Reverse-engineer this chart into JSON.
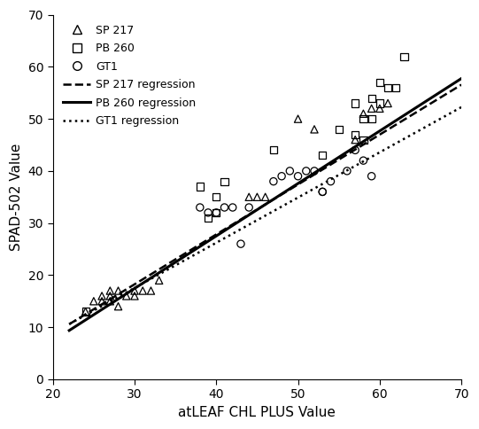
{
  "sp217_x": [
    24,
    25,
    26,
    26,
    27,
    27,
    27,
    28,
    28,
    29,
    30,
    30,
    31,
    32,
    33,
    44,
    45,
    46,
    50,
    52,
    57,
    58,
    59,
    60,
    61
  ],
  "sp217_y": [
    13,
    15,
    16,
    15,
    17,
    16,
    15,
    17,
    14,
    16,
    17,
    16,
    17,
    17,
    19,
    35,
    35,
    35,
    50,
    48,
    46,
    51,
    52,
    52,
    53
  ],
  "pb260_x": [
    24,
    38,
    39,
    40,
    40,
    41,
    47,
    53,
    55,
    57,
    57,
    58,
    58,
    59,
    59,
    60,
    60,
    61,
    62,
    63
  ],
  "pb260_y": [
    13,
    37,
    31,
    35,
    32,
    38,
    44,
    43,
    48,
    47,
    53,
    50,
    46,
    50,
    54,
    53,
    57,
    56,
    56,
    62
  ],
  "gt1_x": [
    38,
    39,
    40,
    41,
    42,
    43,
    44,
    47,
    48,
    49,
    50,
    51,
    52,
    53,
    53,
    54,
    56,
    57,
    58,
    59
  ],
  "gt1_y": [
    33,
    32,
    32,
    33,
    33,
    26,
    33,
    38,
    39,
    40,
    39,
    40,
    40,
    36,
    36,
    38,
    40,
    44,
    42,
    39
  ],
  "sp217_reg": {
    "slope": 0.958,
    "intercept": -10.5
  },
  "pb260_reg": {
    "slope": 1.008,
    "intercept": -12.8
  },
  "gt1_reg": {
    "slope": 0.868,
    "intercept": -8.5
  },
  "xlim": [
    22,
    70
  ],
  "ylim": [
    0,
    70
  ],
  "xticks": [
    20,
    30,
    40,
    50,
    60,
    70
  ],
  "yticks": [
    0,
    10,
    20,
    30,
    40,
    50,
    60,
    70
  ],
  "xlabel": "atLEAF CHL PLUS Value",
  "ylabel": "SPAD-502 Value",
  "bg_color": "#ffffff",
  "line_color": "#000000"
}
